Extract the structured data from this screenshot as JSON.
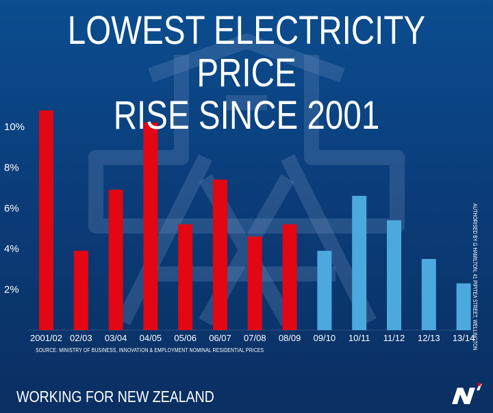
{
  "title_lines": [
    "LOWEST ELECTRICITY PRICE",
    "RISE SINCE 2001"
  ],
  "chart_data": {
    "type": "bar",
    "categories": [
      "2001/02",
      "02/03",
      "03/04",
      "04/05",
      "05/06",
      "06/07",
      "07/08",
      "08/09",
      "09/10",
      "10/11",
      "11/12",
      "12/13",
      "13/14"
    ],
    "values": [
      10.8,
      3.9,
      6.9,
      10.2,
      5.2,
      7.4,
      4.6,
      5.2,
      3.9,
      6.6,
      5.4,
      3.5,
      2.3
    ],
    "yticks": [
      2,
      4,
      6,
      8,
      10
    ],
    "ytick_labels": [
      "2%",
      "4%",
      "6%",
      "8%",
      "10%"
    ],
    "ylim": [
      0,
      11
    ],
    "colors": [
      "#e30613",
      "#e30613",
      "#e30613",
      "#e30613",
      "#e30613",
      "#e30613",
      "#e30613",
      "#e30613",
      "#4ba9dd",
      "#4ba9dd",
      "#4ba9dd",
      "#4ba9dd",
      "#4ba9dd"
    ],
    "grid": false,
    "legend": "none"
  },
  "source_note": "SOURCE: MINISTRY OF BUSINESS, INNOVATION & EMPLOYMENT NOMINAL RESIDENTIAL PRICES",
  "authorised_note": "AUTHORISED BY G HAMILTON, 41 PIPITEA STREET, WELLINGTON",
  "footer_tagline": "WORKING FOR NEW ZEALAND",
  "colors": {
    "background": "#0b4d8f",
    "red": "#e30613",
    "blue": "#4ba9dd",
    "text": "#ffffff"
  },
  "logo_icon": "national-party-logo"
}
